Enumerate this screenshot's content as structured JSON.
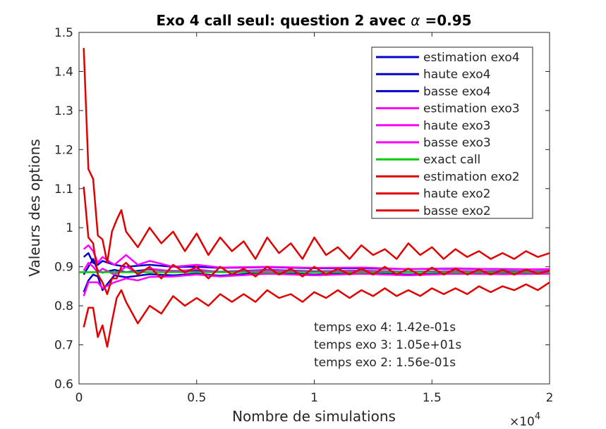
{
  "chart_data": {
    "type": "line",
    "title_main": "Exo 4 call seul: question 2 avec ",
    "title_symbol": "α",
    "title_value": " =0.95",
    "xlabel": "Nombre de simulations",
    "ylabel": "Valeurs des options",
    "x_exponent_base": "×10",
    "x_exponent_power": "4",
    "xlim": [
      0,
      20000
    ],
    "ylim": [
      0.6,
      1.5
    ],
    "x_ticks": [
      0,
      5000,
      10000,
      15000,
      20000
    ],
    "x_tick_labels": [
      "0",
      "0.5",
      "1",
      "1.5",
      "2"
    ],
    "y_ticks": [
      0.6,
      0.7,
      0.8,
      0.9,
      1.0,
      1.1,
      1.2,
      1.3,
      1.4,
      1.5
    ],
    "y_tick_labels": [
      "0.6",
      "0.7",
      "0.8",
      "0.9",
      "1",
      "1.1",
      "1.2",
      "1.3",
      "1.4",
      "1.5"
    ],
    "grid": false,
    "legend_position": "top-right",
    "annotations": [
      "temps exo 4: 1.42e-01s",
      "temps exo 3: 1.05e+01s",
      "temps exo 2: 1.56e-01s"
    ],
    "series": [
      {
        "name": "estimation exo4",
        "color": "#0000cc",
        "x": [
          200,
          400,
          600,
          800,
          1000,
          1500,
          2000,
          3000,
          4000,
          5000,
          6000,
          8000,
          10000,
          12000,
          14000,
          16000,
          18000,
          20000
        ],
        "y": [
          0.88,
          0.9,
          0.92,
          0.89,
          0.885,
          0.892,
          0.886,
          0.893,
          0.889,
          0.891,
          0.887,
          0.892,
          0.888,
          0.89,
          0.887,
          0.889,
          0.888,
          0.888
        ]
      },
      {
        "name": "haute exo4",
        "color": "#0000cc",
        "x": [
          200,
          400,
          600,
          800,
          1000,
          1500,
          2000,
          3000,
          4000,
          5000,
          6000,
          8000,
          10000,
          12000,
          14000,
          16000,
          18000,
          20000
        ],
        "y": [
          0.925,
          0.935,
          0.91,
          0.905,
          0.915,
          0.905,
          0.9,
          0.905,
          0.9,
          0.9,
          0.897,
          0.899,
          0.896,
          0.896,
          0.894,
          0.895,
          0.894,
          0.893
        ]
      },
      {
        "name": "basse exo4",
        "color": "#0000cc",
        "x": [
          200,
          400,
          600,
          800,
          1000,
          1500,
          2000,
          3000,
          4000,
          5000,
          6000,
          8000,
          10000,
          12000,
          14000,
          16000,
          18000,
          20000
        ],
        "y": [
          0.835,
          0.865,
          0.88,
          0.875,
          0.84,
          0.878,
          0.873,
          0.881,
          0.878,
          0.882,
          0.877,
          0.885,
          0.88,
          0.884,
          0.88,
          0.883,
          0.882,
          0.883
        ]
      },
      {
        "name": "estimation exo3",
        "color": "#ff00ff",
        "x": [
          200,
          400,
          600,
          800,
          1000,
          1500,
          2000,
          2500,
          3000,
          4000,
          5000,
          6000,
          8000,
          10000,
          12000,
          14000,
          16000,
          18000,
          20000
        ],
        "y": [
          0.89,
          0.91,
          0.9,
          0.885,
          0.895,
          0.88,
          0.9,
          0.885,
          0.895,
          0.888,
          0.893,
          0.886,
          0.891,
          0.887,
          0.89,
          0.886,
          0.889,
          0.887,
          0.888
        ]
      },
      {
        "name": "haute exo3",
        "color": "#ff00ff",
        "x": [
          200,
          400,
          600,
          800,
          1000,
          1500,
          2000,
          2500,
          3000,
          4000,
          5000,
          6000,
          8000,
          10000,
          12000,
          14000,
          16000,
          18000,
          20000
        ],
        "y": [
          0.945,
          0.955,
          0.94,
          0.91,
          0.925,
          0.905,
          0.93,
          0.905,
          0.915,
          0.9,
          0.905,
          0.898,
          0.9,
          0.897,
          0.898,
          0.894,
          0.896,
          0.893,
          0.894
        ]
      },
      {
        "name": "basse exo3",
        "color": "#ff00ff",
        "x": [
          200,
          400,
          600,
          800,
          1000,
          1500,
          2000,
          2500,
          3000,
          4000,
          5000,
          6000,
          8000,
          10000,
          12000,
          14000,
          16000,
          18000,
          20000
        ],
        "y": [
          0.825,
          0.86,
          0.86,
          0.86,
          0.845,
          0.86,
          0.87,
          0.865,
          0.874,
          0.875,
          0.88,
          0.875,
          0.882,
          0.878,
          0.882,
          0.878,
          0.882,
          0.881,
          0.882
        ]
      },
      {
        "name": "exact call",
        "color": "#00cc00",
        "x": [
          0,
          20000
        ],
        "y": [
          0.886,
          0.886
        ]
      },
      {
        "name": "estimation exo2",
        "color": "#e00000",
        "x": [
          200,
          400,
          600,
          800,
          1000,
          1200,
          1400,
          1600,
          1800,
          2000,
          2500,
          3000,
          3500,
          4000,
          4500,
          5000,
          5500,
          6000,
          6500,
          7000,
          7500,
          8000,
          8500,
          9000,
          9500,
          10000,
          10500,
          11000,
          11500,
          12000,
          12500,
          13000,
          13500,
          14000,
          14500,
          15000,
          15500,
          16000,
          16500,
          17000,
          17500,
          18000,
          18500,
          19000,
          19500,
          20000
        ],
        "y": [
          1.105,
          0.975,
          0.96,
          0.88,
          0.86,
          0.83,
          0.87,
          0.87,
          0.9,
          0.91,
          0.88,
          0.9,
          0.87,
          0.905,
          0.885,
          0.9,
          0.87,
          0.9,
          0.88,
          0.895,
          0.875,
          0.9,
          0.88,
          0.895,
          0.875,
          0.9,
          0.88,
          0.895,
          0.88,
          0.895,
          0.88,
          0.9,
          0.88,
          0.895,
          0.878,
          0.898,
          0.88,
          0.895,
          0.88,
          0.893,
          0.88,
          0.892,
          0.88,
          0.893,
          0.882,
          0.89
        ]
      },
      {
        "name": "haute exo2",
        "color": "#e00000",
        "x": [
          200,
          400,
          600,
          800,
          1000,
          1200,
          1400,
          1600,
          1800,
          2000,
          2500,
          3000,
          3500,
          4000,
          4500,
          5000,
          5500,
          6000,
          6500,
          7000,
          7500,
          8000,
          8500,
          9000,
          9500,
          10000,
          10500,
          11000,
          11500,
          12000,
          12500,
          13000,
          13500,
          14000,
          14500,
          15000,
          15500,
          16000,
          16500,
          17000,
          17500,
          18000,
          18500,
          19000,
          19500,
          20000
        ],
        "y": [
          1.46,
          1.15,
          1.125,
          0.98,
          0.97,
          0.91,
          0.99,
          1.02,
          1.045,
          0.99,
          0.95,
          1.0,
          0.96,
          0.99,
          0.94,
          0.985,
          0.93,
          0.975,
          0.94,
          0.965,
          0.92,
          0.975,
          0.935,
          0.96,
          0.92,
          0.975,
          0.93,
          0.95,
          0.92,
          0.955,
          0.93,
          0.945,
          0.92,
          0.96,
          0.93,
          0.95,
          0.92,
          0.945,
          0.925,
          0.94,
          0.92,
          0.935,
          0.92,
          0.94,
          0.925,
          0.935
        ]
      },
      {
        "name": "basse exo2",
        "color": "#e00000",
        "x": [
          200,
          400,
          600,
          800,
          1000,
          1200,
          1400,
          1600,
          1800,
          2000,
          2500,
          3000,
          3500,
          4000,
          4500,
          5000,
          5500,
          6000,
          6500,
          7000,
          7500,
          8000,
          8500,
          9000,
          9500,
          10000,
          10500,
          11000,
          11500,
          12000,
          12500,
          13000,
          13500,
          14000,
          14500,
          15000,
          15500,
          16000,
          16500,
          17000,
          17500,
          18000,
          18500,
          19000,
          19500,
          20000
        ],
        "y": [
          0.745,
          0.795,
          0.795,
          0.72,
          0.75,
          0.695,
          0.76,
          0.82,
          0.84,
          0.81,
          0.755,
          0.8,
          0.78,
          0.825,
          0.8,
          0.82,
          0.8,
          0.83,
          0.81,
          0.83,
          0.81,
          0.84,
          0.82,
          0.83,
          0.81,
          0.835,
          0.82,
          0.84,
          0.82,
          0.84,
          0.825,
          0.845,
          0.825,
          0.84,
          0.825,
          0.845,
          0.83,
          0.845,
          0.83,
          0.85,
          0.835,
          0.85,
          0.84,
          0.855,
          0.84,
          0.86
        ]
      }
    ]
  }
}
